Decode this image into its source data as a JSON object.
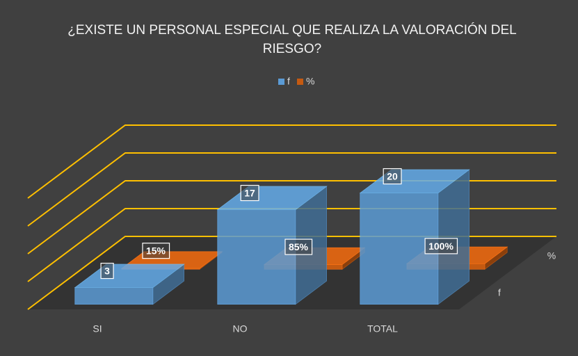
{
  "chart_data": {
    "type": "bar3d",
    "title": "¿EXISTE UN PERSONAL ESPECIAL QUE REALIZA LA VALORACIÓN DEL RIESGO?",
    "categories": [
      "SI",
      "NO",
      "TOTAL"
    ],
    "series": [
      {
        "name": "f",
        "color": "#5b9bd5",
        "values": [
          3,
          17,
          20
        ]
      },
      {
        "name": "%",
        "color": "#c55a11",
        "values": [
          0.15,
          0.85,
          1
        ],
        "value_labels": [
          "15%",
          "85%",
          "100%"
        ]
      }
    ],
    "ylim": [
      0,
      20
    ],
    "yticks": [
      0,
      5,
      10,
      15,
      20
    ],
    "grid": true,
    "grid_color": "#ffc000",
    "legend": "top"
  }
}
